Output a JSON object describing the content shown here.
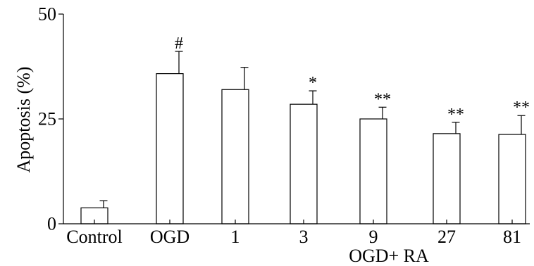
{
  "chart_data": {
    "type": "bar",
    "title": "",
    "ylabel": "Apoptosis (%)",
    "xlabel": "",
    "ylim": [
      0,
      50
    ],
    "yticks": [
      0,
      25,
      50
    ],
    "categories": [
      "Control",
      "OGD",
      "1",
      "3",
      "9",
      "27",
      "81"
    ],
    "values": [
      3.8,
      35.8,
      32.0,
      28.5,
      25.0,
      21.5,
      21.3
    ],
    "errors": [
      1.7,
      5.3,
      5.3,
      3.2,
      2.8,
      2.7,
      4.5
    ],
    "annotations": [
      "",
      "#",
      "",
      "*",
      "**",
      "**",
      "**"
    ],
    "group_label": "OGD+ RA",
    "grid": false,
    "legend": "none"
  }
}
